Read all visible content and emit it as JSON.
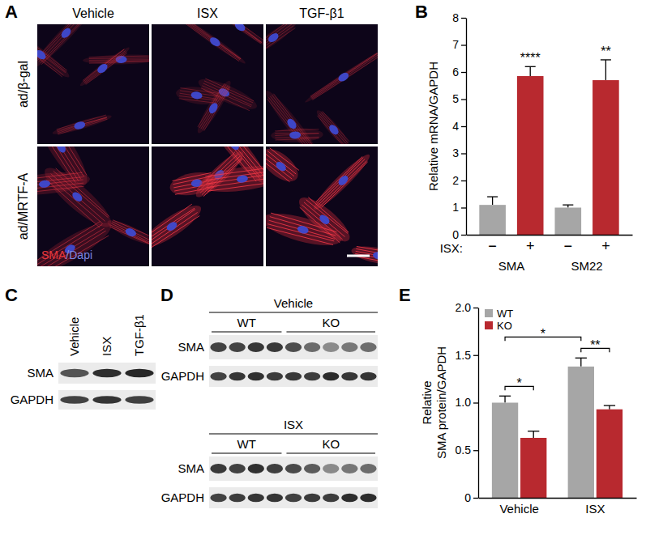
{
  "figure": {
    "panel_labels": [
      "A",
      "B",
      "C",
      "D",
      "E"
    ]
  },
  "panel_A": {
    "columns": [
      "Vehicle",
      "ISX",
      "TGF-β1"
    ],
    "rows": [
      "ad/β-gal",
      "ad/MRTF-A"
    ],
    "stain_label": [
      {
        "text": "SMA",
        "color": "#e8383d"
      },
      {
        "text": "/",
        "color": "#8a8fd8"
      },
      {
        "text": "Dapi",
        "color": "#7b86e0"
      }
    ]
  },
  "panel_C": {
    "columns": [
      "Vehicle",
      "ISX",
      "TGF-β1"
    ],
    "rows": [
      "SMA",
      "GAPDH"
    ]
  },
  "panel_D": {
    "rows": [
      "SMA",
      "GAPDH"
    ],
    "groups": [
      {
        "title": "Vehicle",
        "lanes": [
          {
            "label": "WT",
            "count": 4
          },
          {
            "label": "KO",
            "count": 5
          }
        ]
      },
      {
        "title": "ISX",
        "lanes": [
          {
            "label": "WT",
            "count": 4
          },
          {
            "label": "KO",
            "count": 5
          }
        ]
      }
    ]
  },
  "chart_data": [
    {
      "type": "bar",
      "categories": [
        "−",
        "+",
        "−",
        "+"
      ],
      "groups": [
        "SMA",
        "SM22"
      ],
      "x_label": "ISX:",
      "y_label": "Relative mRNA/GAPDH",
      "values": [
        1.1,
        5.85,
        1.0,
        5.7
      ],
      "errors": [
        0.3,
        0.35,
        0.1,
        0.75
      ],
      "significance": [
        null,
        "****",
        null,
        "**"
      ],
      "colors": [
        "#a6a6a6",
        "#b8292f",
        "#a6a6a6",
        "#b8292f"
      ],
      "ylim": [
        0,
        8
      ],
      "yticks": [
        0,
        1,
        2,
        3,
        4,
        5,
        6,
        7,
        8
      ]
    },
    {
      "type": "bar",
      "categories": [
        "Vehicle",
        "ISX"
      ],
      "y_label": [
        "Relative",
        "SMA protein/GAPDH"
      ],
      "series": [
        {
          "name": "WT",
          "color": "#a6a6a6",
          "values": [
            1.0,
            1.38
          ],
          "errors": [
            0.07,
            0.09
          ]
        },
        {
          "name": "KO",
          "color": "#b8292f",
          "values": [
            0.63,
            0.93
          ],
          "errors": [
            0.07,
            0.04
          ]
        }
      ],
      "ylim": [
        0,
        2
      ],
      "yticks": [
        0,
        0.5,
        {
          "value": 1,
          "label": "1.0"
        },
        1.5,
        {
          "value": 2,
          "label": "2.0"
        }
      ],
      "legend": "top-left",
      "brackets": [
        {
          "label": "*",
          "series": [
            0,
            1
          ],
          "categories": [
            0,
            0
          ]
        },
        {
          "label": "**",
          "series": [
            0,
            1
          ],
          "categories": [
            1,
            1
          ]
        },
        {
          "label": "*",
          "series": [
            0,
            0
          ],
          "categories": [
            0,
            1
          ]
        }
      ]
    }
  ]
}
